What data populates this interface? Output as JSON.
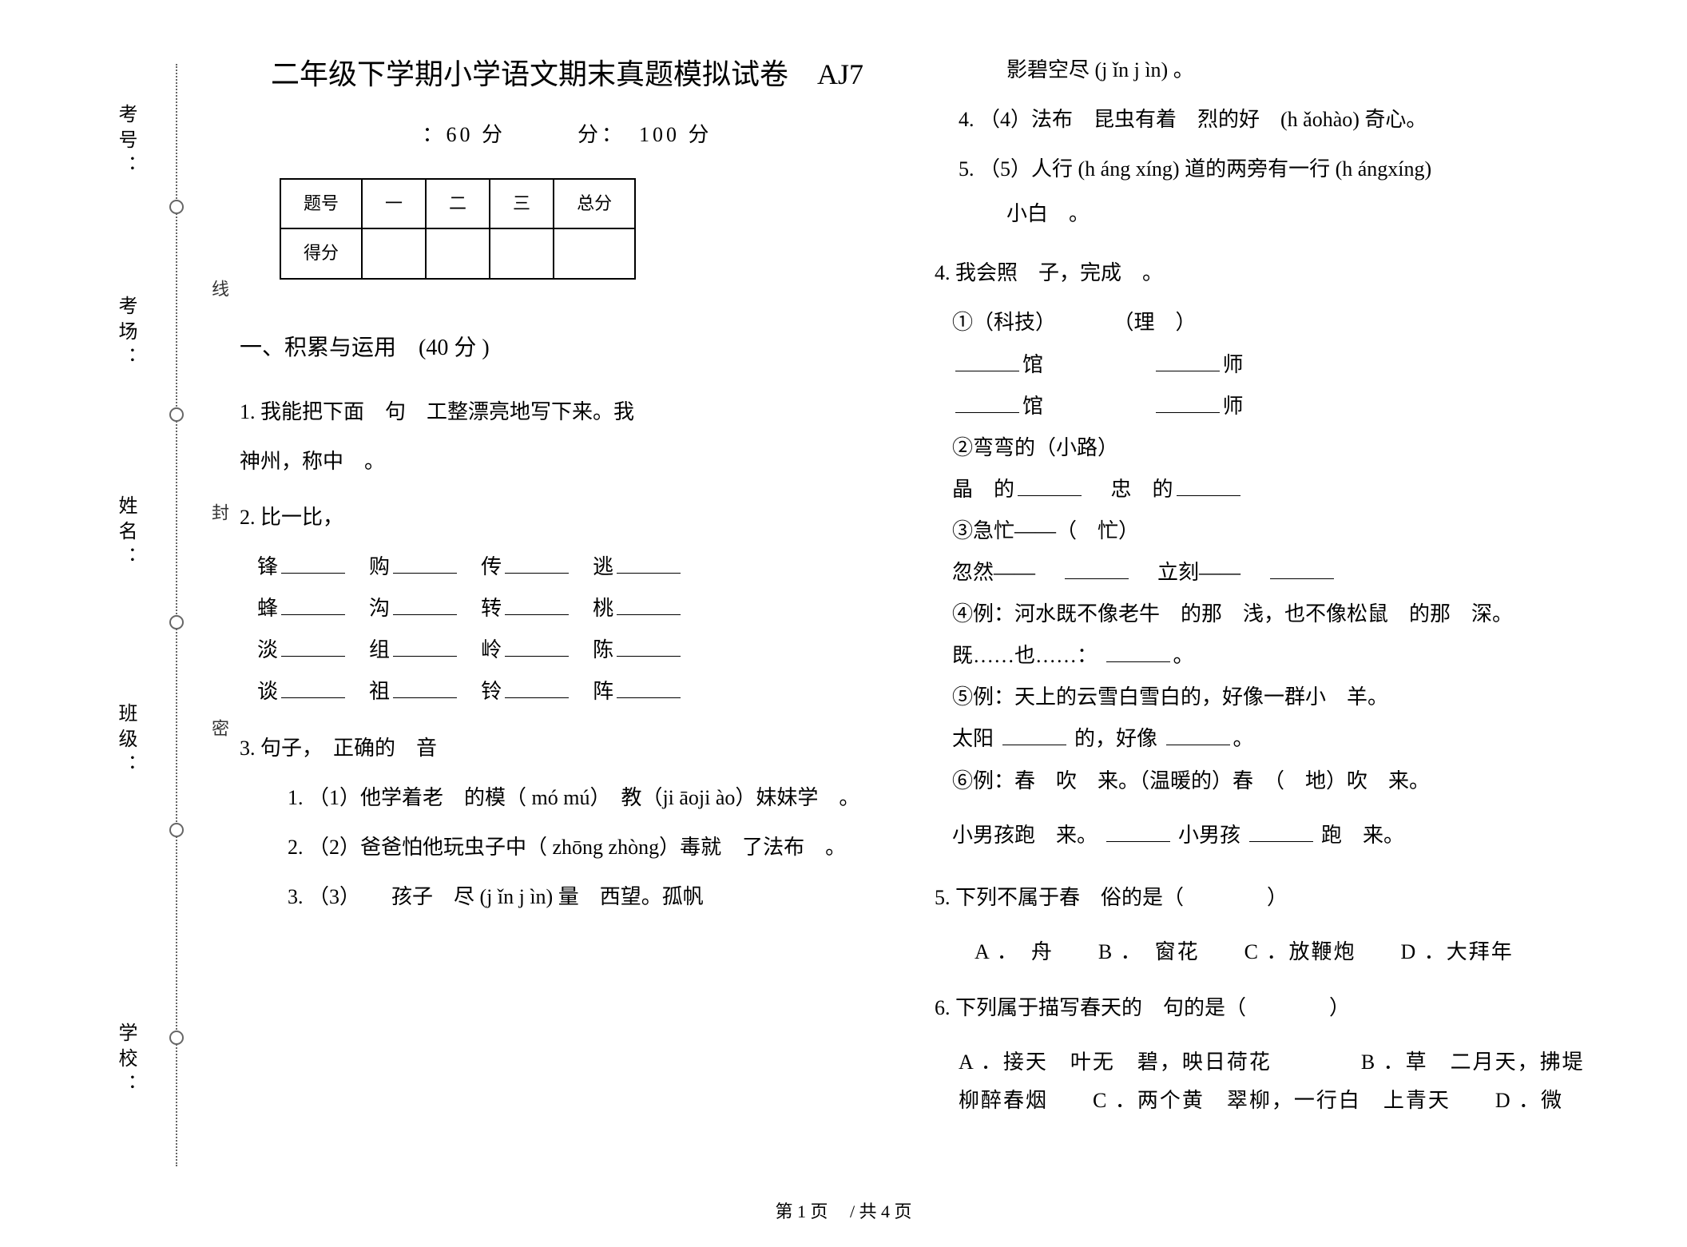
{
  "side": {
    "labels": [
      "考号：",
      "考场：",
      "姓名：",
      "班级：",
      "学校："
    ],
    "vert": [
      "线",
      "封",
      "密"
    ]
  },
  "header": {
    "title": "二年级下学期小学语文期末真题模拟试卷　AJ7",
    "subtitle": "：60 分　　　分：　100 分"
  },
  "score_table": {
    "headers": [
      "题号",
      "一",
      "二",
      "三",
      "总分"
    ],
    "row_label": "得分"
  },
  "section1_title": "一、积累与运用　(40 分 )",
  "q1": {
    "num": "1.",
    "text1": "我能把下面　句　工整漂亮地写下来。我",
    "text2": "神州，称中　。"
  },
  "q2": {
    "num": "2.",
    "title": "比一比，",
    "rows": [
      [
        "锋",
        "购",
        "传",
        "逃"
      ],
      [
        "蜂",
        "沟",
        "转",
        "桃"
      ],
      [
        "淡",
        "组",
        "岭",
        "陈"
      ],
      [
        "谈",
        "祖",
        "铃",
        "阵"
      ]
    ]
  },
  "q3": {
    "num": "3.",
    "title": "句子，　正确的　音",
    "items": [
      {
        "n": "1.",
        "t": "（1）他学着老　的模（ mó mú）　教（ji āoji ào）妹妹学　。"
      },
      {
        "n": "2.",
        "t": "（2）爸爸怕他玩虫子中（ zhōng zhòng）毒就　了法布　。"
      },
      {
        "n": "3.",
        "t": "（3）　　孩子　尽 (j ǐn j ìn) 量　西望。孤帆"
      },
      {
        "n": "",
        "t": "影碧空尽 (j ǐn j ìn) 。"
      },
      {
        "n": "4.",
        "t": "（4）法布　昆虫有着　烈的好　(h ǎohào) 奇心。"
      },
      {
        "n": "5.",
        "t": "（5）人行 (h áng  xíng) 道的两旁有一行  (h ángxíng)"
      },
      {
        "n": "",
        "t": "小白　。"
      }
    ]
  },
  "q4": {
    "num": "4.",
    "title": "我会照　子，完成　。",
    "g1_a": "①（科技）",
    "g1_b": "（理　）",
    "g1_l1a": "馆",
    "g1_l1b": "师",
    "g1_l2a": "馆",
    "g1_l2b": "师",
    "g2": "②弯弯的（小路）",
    "g2_a": "晶　的",
    "g2_b": "忠　的",
    "g3": "③急忙——（　忙）",
    "g3_a": "忽然——",
    "g3_b": "立刻——",
    "g4": "④例：河水既不像老牛　的那　浅，也不像松鼠　的那　深。",
    "g4_s": "既……也……：",
    "g4_end": "。",
    "g5": "⑤例：天上的云雪白雪白的，好像一群小　羊。",
    "g5_a": "太阳",
    "g5_b": "的，好像",
    "g5_end": "。",
    "g6": "⑥例：春　吹　来。（温暖的）春　（　地）吹　来。",
    "g6_a": "小男孩跑　来。",
    "g6_b": "小男孩",
    "g6_c": "跑　来。"
  },
  "q5": {
    "num": "5.",
    "title": "下列不属于春　俗的是（　　　　）",
    "opts": "A ．　舟　　B ．　窗花　　C ．放鞭炮　　D ．大拜年"
  },
  "q6": {
    "num": "6.",
    "title": "下列属于描写春天的　句的是（　　　　）",
    "opts": "A ．接天　叶无　碧，映日荷花　　　　B ．草　二月天，拂堤　柳醉春烟　　C ．两个黄　翠柳，一行白　上青天　　D ．微"
  },
  "footer": "第 1 页　 / 共 4 页"
}
